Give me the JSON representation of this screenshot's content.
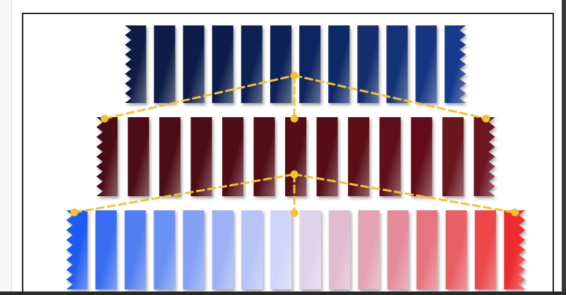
{
  "diagram": {
    "rows": [
      {
        "name": "row-navy",
        "bar_count": 12,
        "color_start": "#0b1a45",
        "color_end": "#1f56c8",
        "notched_left": true,
        "notched_right": true
      },
      {
        "name": "row-maroon",
        "bar_count": 13,
        "color_start": "#4a0a12",
        "color_end": "#8a1c2c",
        "notched_left": true,
        "notched_right": true
      },
      {
        "name": "row-gradient",
        "bar_count": 16,
        "color_start": "#1e5cf0",
        "color_mid": "#dcdff7",
        "color_end": "#ee2f2f",
        "notched_left": true,
        "notched_right": true
      }
    ],
    "connector_color": "#f2c230"
  }
}
